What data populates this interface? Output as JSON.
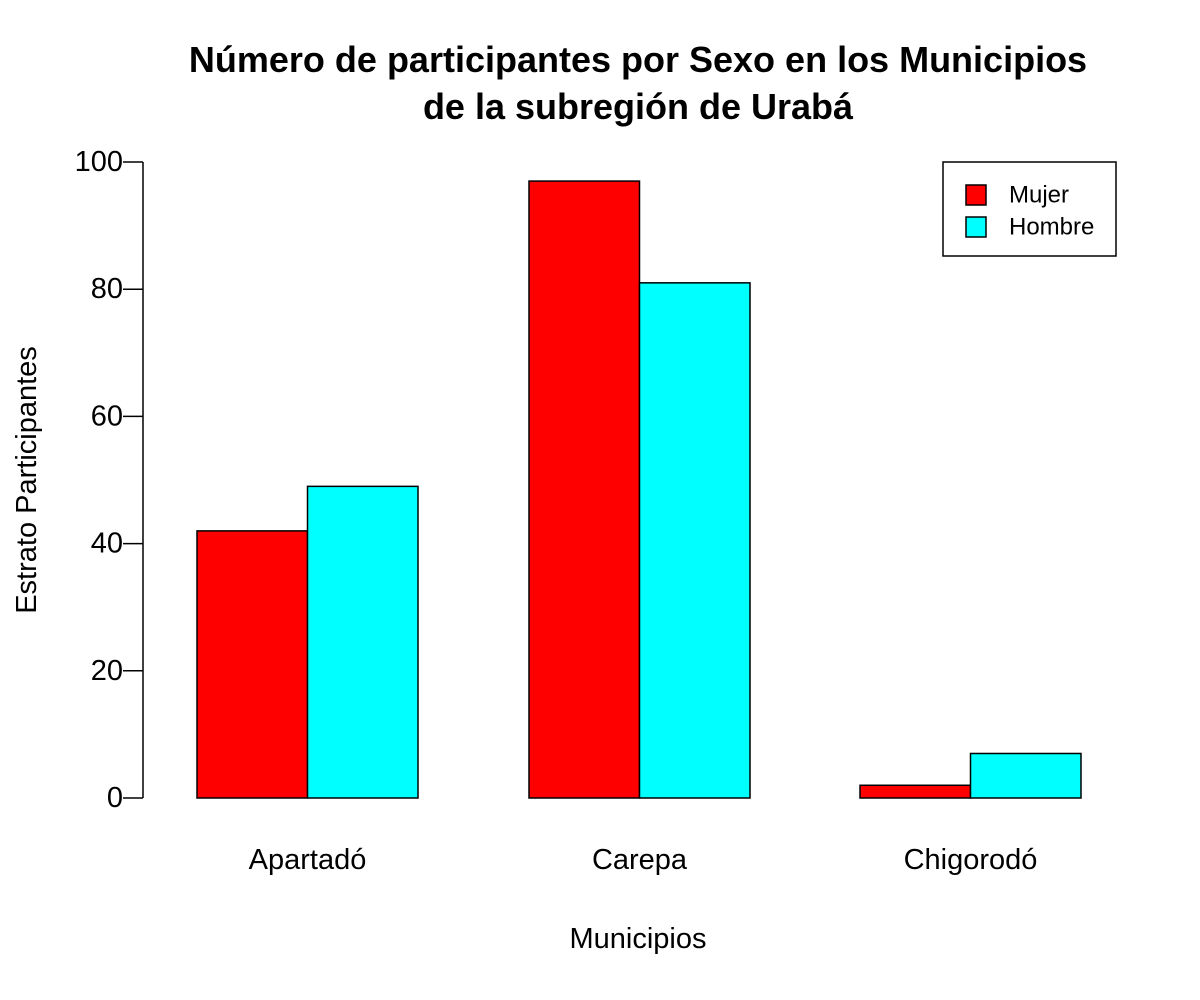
{
  "chart_data": {
    "type": "bar",
    "title": [
      "Número de participantes por Sexo en los Municipios",
      "de la subregión de Urabá"
    ],
    "xlabel": "Municipios",
    "ylabel": "Estrato Participantes",
    "categories": [
      "Apartadó",
      "Carepa",
      "Chigorodó"
    ],
    "series": [
      {
        "name": "Mujer",
        "color": "#ff0000",
        "values": [
          42,
          97,
          2
        ]
      },
      {
        "name": "Hombre",
        "color": "#00ffff",
        "values": [
          49,
          81,
          7
        ]
      }
    ],
    "ylim": [
      0,
      100
    ],
    "yticks": [
      0,
      20,
      40,
      60,
      80,
      100
    ],
    "grid": false,
    "legend_position": "top-right"
  }
}
